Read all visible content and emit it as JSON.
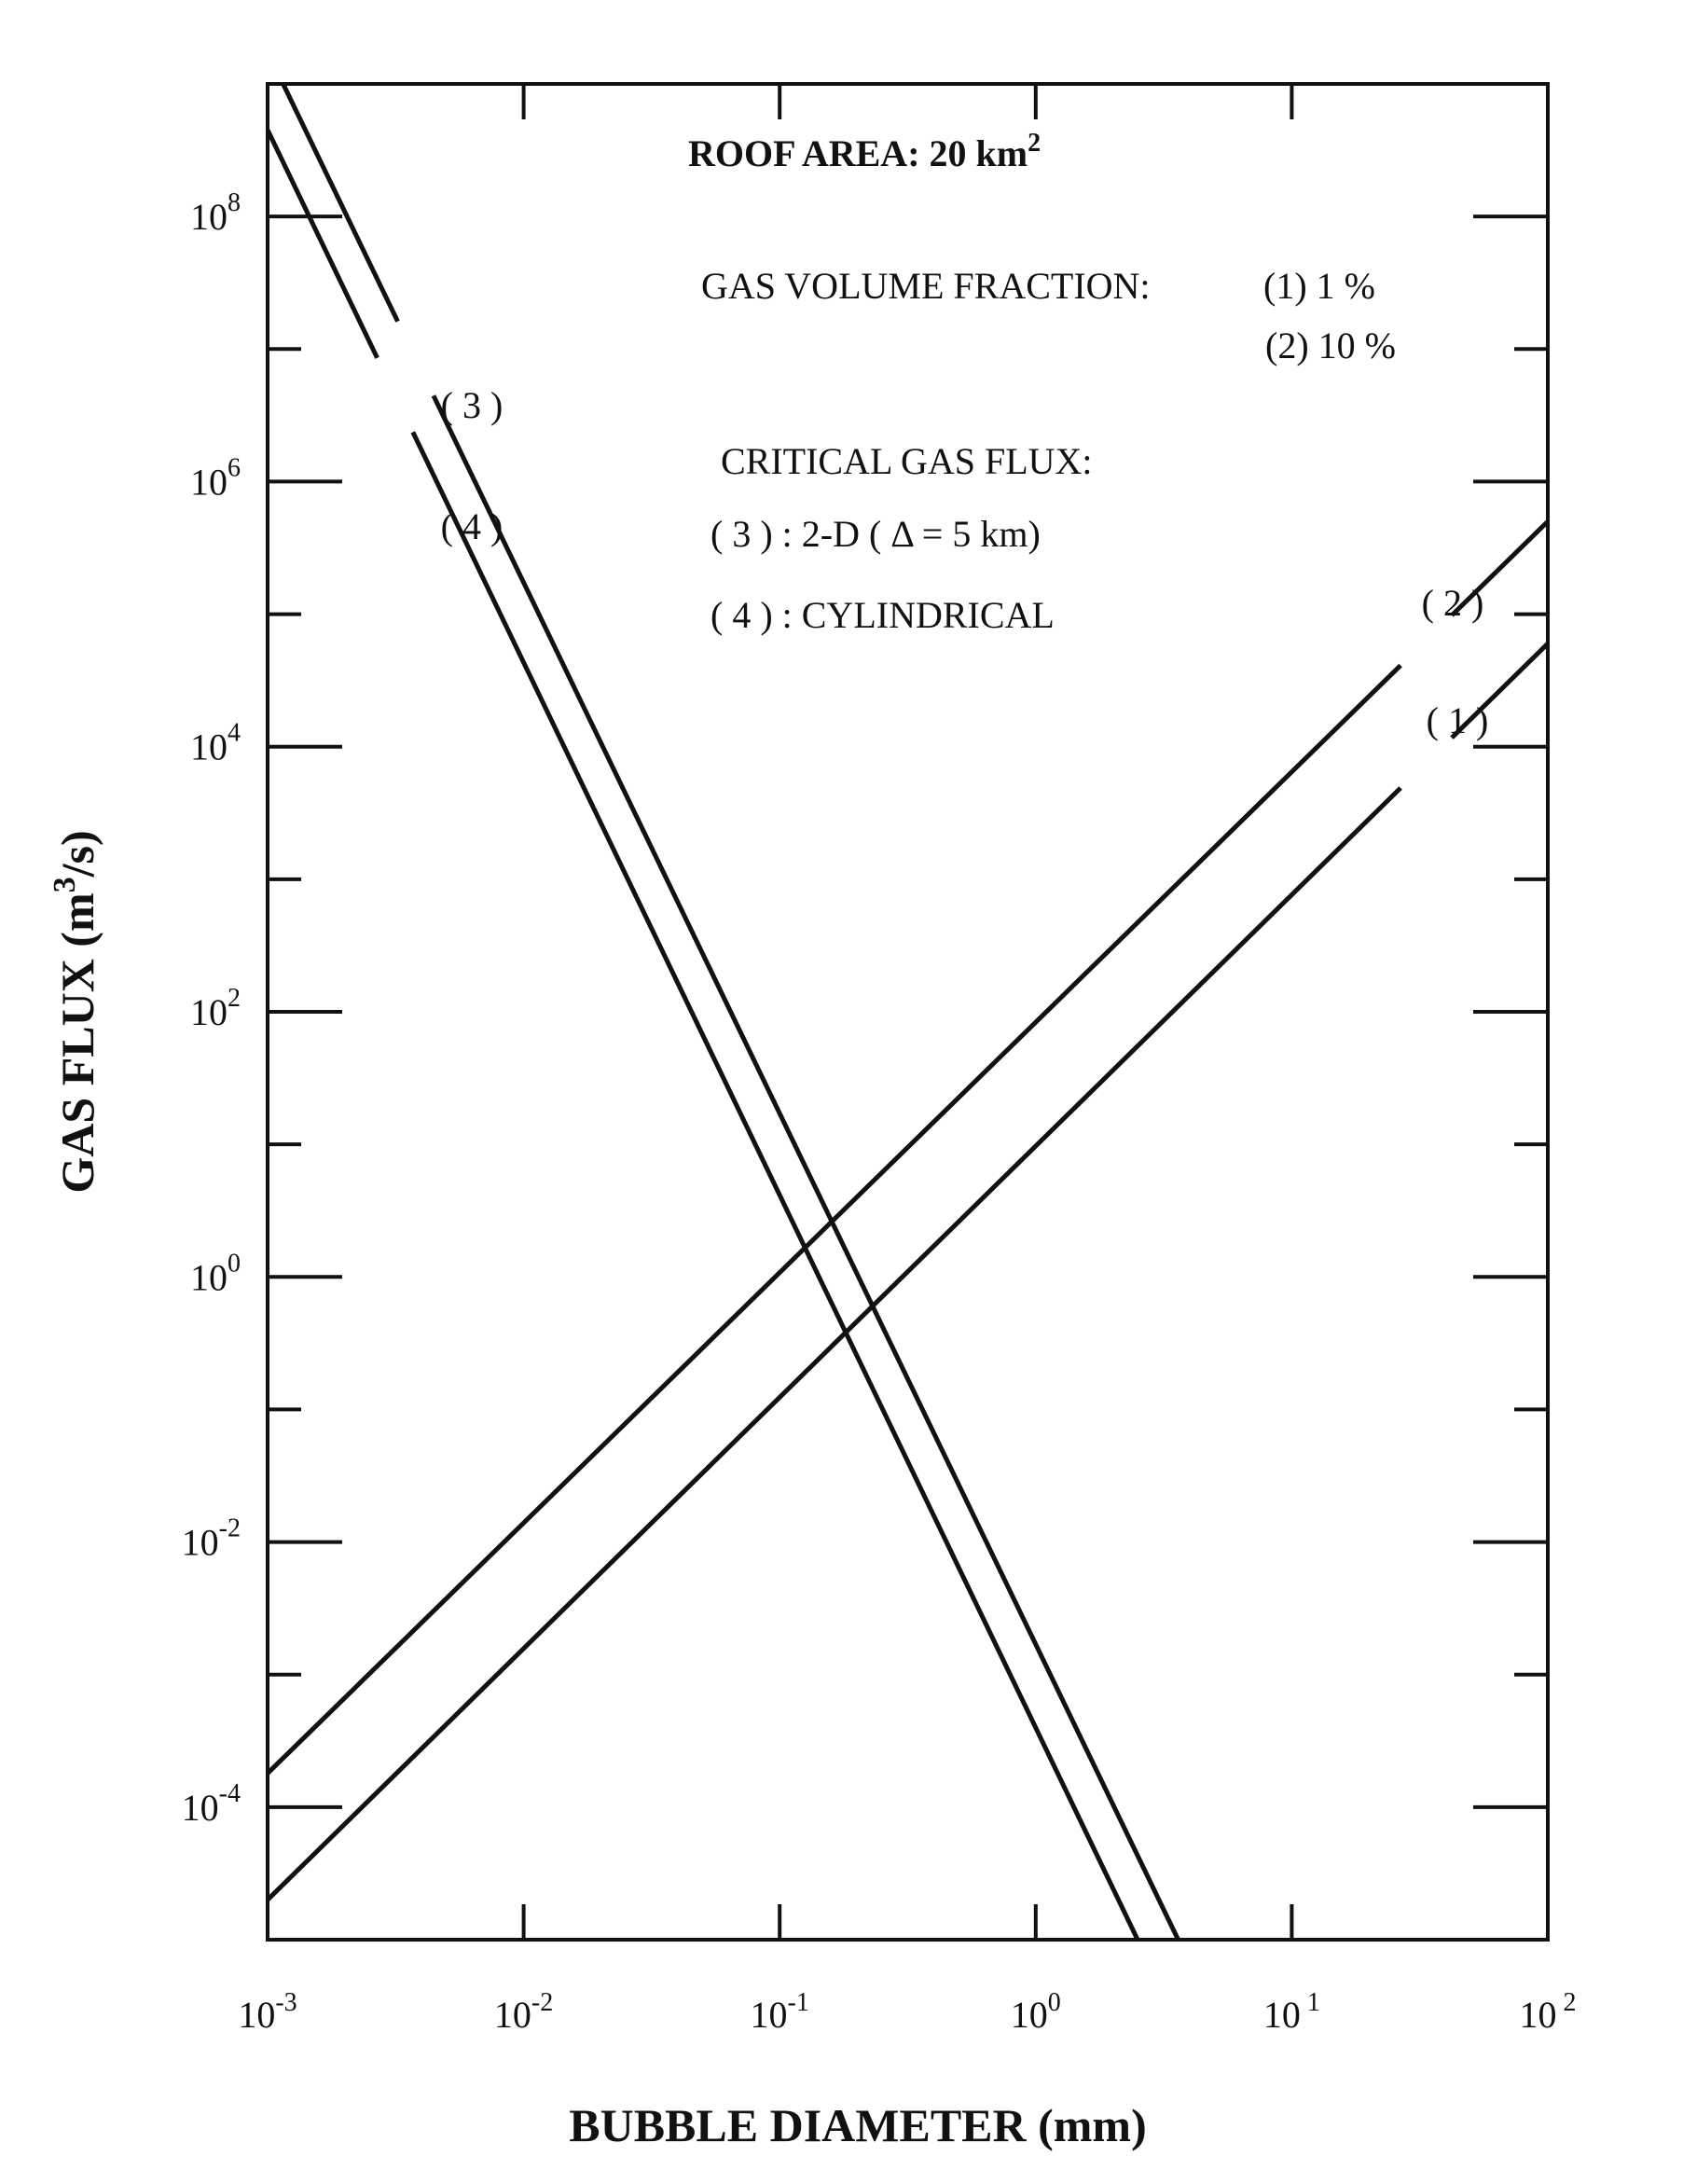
{
  "chart_data": {
    "type": "line",
    "title": "",
    "xlabel": "BUBBLE DIAMETER (mm)",
    "ylabel_main": "GAS FLUX (m",
    "ylabel_sup": "3",
    "ylabel_tail": "/s)",
    "xscale": "log",
    "yscale": "log",
    "xlim": [
      0.001,
      100
    ],
    "ylim": [
      1e-05,
      1000000000
    ],
    "grid": false,
    "x_ticks": [
      {
        "base": "10",
        "exp": "-3",
        "value": 0.001
      },
      {
        "base": "10",
        "exp": "-2",
        "value": 0.01
      },
      {
        "base": "10",
        "exp": "-1",
        "value": 0.1
      },
      {
        "base": "10",
        "exp": "0",
        "value": 1
      },
      {
        "base": "10",
        "exp": " 1",
        "value": 10
      },
      {
        "base": "10",
        "exp": " 2",
        "value": 100
      }
    ],
    "y_ticks": [
      {
        "base": "10",
        "exp": "8",
        "value": 100000000
      },
      {
        "base": "10",
        "exp": "6",
        "value": 1000000
      },
      {
        "base": "10",
        "exp": "4",
        "value": 10000
      },
      {
        "base": "10",
        "exp": "2",
        "value": 100
      },
      {
        "base": "10",
        "exp": "0",
        "value": 1
      },
      {
        "base": "10",
        "exp": "-2",
        "value": 0.01
      },
      {
        "base": "10",
        "exp": "-4",
        "value": 0.0001
      }
    ],
    "series": [
      {
        "label": "( 1 )",
        "points": [
          [
            0.001,
            2e-05
          ],
          [
            100,
            60000
          ]
        ]
      },
      {
        "label": "( 2 )",
        "points": [
          [
            0.001,
            0.00018
          ],
          [
            100,
            500000
          ]
        ]
      },
      {
        "label": "( 3 )",
        "points": [
          [
            0.00115,
            1000000000
          ],
          [
            3.6,
            1e-05
          ]
        ]
      },
      {
        "label": "( 4 )",
        "points": [
          [
            0.001,
            450000000
          ],
          [
            2.5,
            1e-05
          ]
        ]
      }
    ],
    "annotations": {
      "roof_area": "ROOF AREA: 20 km",
      "roof_area_sup": "2",
      "gas_volume_fraction": "GAS VOLUME FRACTION:",
      "gvf_1": "(1)   1 %",
      "gvf_2": "(2)  10 %",
      "critical_gas_flux": "CRITICAL GAS FLUX:",
      "cgf_3": "( 3 ) :  2-D ( Δ  = 5 km)",
      "cgf_4": "( 4 ) : CYLINDRICAL"
    }
  }
}
